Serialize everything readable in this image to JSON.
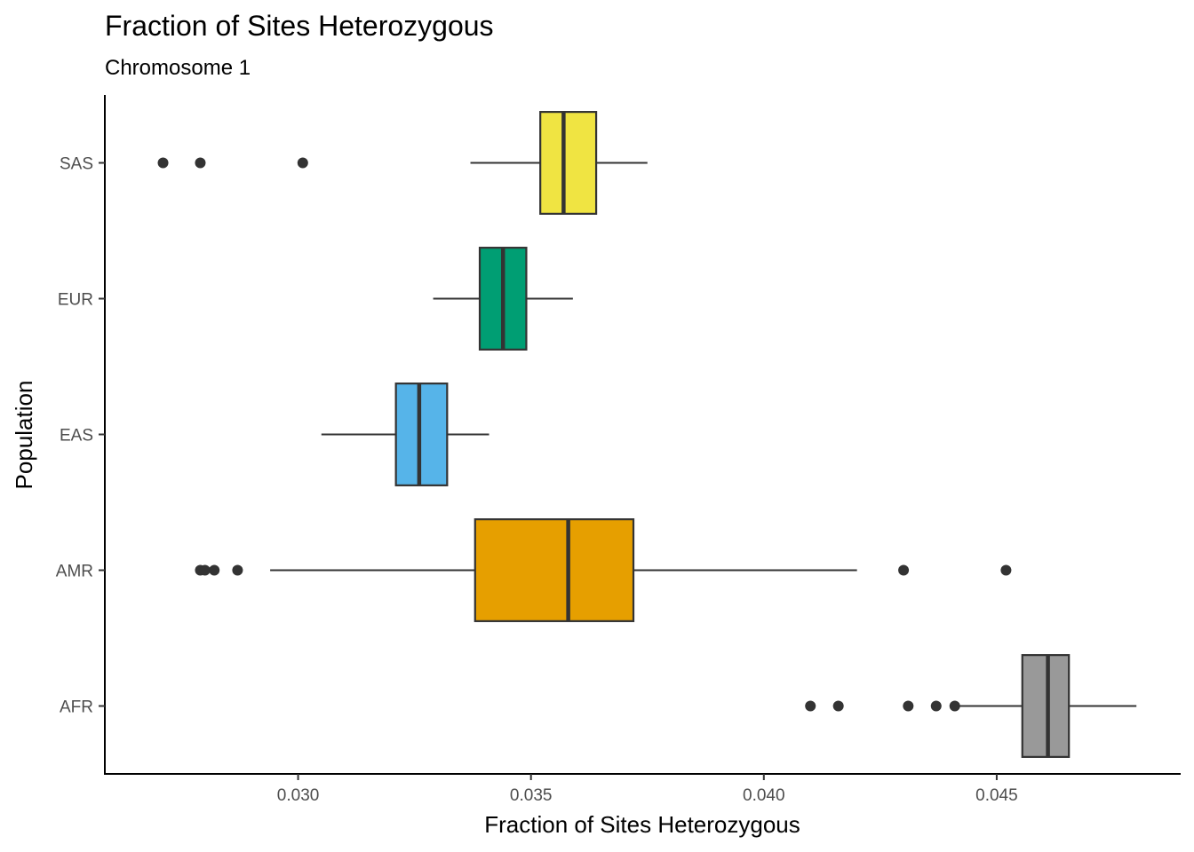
{
  "chart_data": {
    "type": "boxplot",
    "orientation": "horizontal",
    "title": "Fraction of Sites Heterozygous",
    "subtitle": "Chromosome 1",
    "xlabel": "Fraction of Sites Heterozygous",
    "ylabel": "Population",
    "xlim": [
      0.02585,
      0.04895
    ],
    "xticks": [
      0.03,
      0.035,
      0.04,
      0.045
    ],
    "xtick_labels": [
      "0.030",
      "0.035",
      "0.040",
      "0.045"
    ],
    "grid": false,
    "legend": "none",
    "categories": [
      "AFR",
      "AMR",
      "EAS",
      "EUR",
      "SAS"
    ],
    "series": [
      {
        "category": "AFR",
        "color": "#999999",
        "whisker_low": 0.0441,
        "q1": 0.04555,
        "median": 0.0461,
        "q3": 0.04655,
        "whisker_high": 0.048,
        "outliers": [
          0.041,
          0.0416,
          0.0431,
          0.0437,
          0.0441
        ]
      },
      {
        "category": "AMR",
        "color": "#E69F00",
        "whisker_low": 0.0294,
        "q1": 0.0338,
        "median": 0.0358,
        "q3": 0.0372,
        "whisker_high": 0.042,
        "outliers": [
          0.0279,
          0.028,
          0.0282,
          0.0287,
          0.043,
          0.0452
        ]
      },
      {
        "category": "EAS",
        "color": "#56B4E9",
        "whisker_low": 0.0305,
        "q1": 0.0321,
        "median": 0.0326,
        "q3": 0.0332,
        "whisker_high": 0.0341,
        "outliers": []
      },
      {
        "category": "EUR",
        "color": "#009E73",
        "whisker_low": 0.0329,
        "q1": 0.0339,
        "median": 0.0344,
        "q3": 0.0349,
        "whisker_high": 0.0359,
        "outliers": []
      },
      {
        "category": "SAS",
        "color": "#F0E442",
        "whisker_low": 0.0337,
        "q1": 0.0352,
        "median": 0.0357,
        "q3": 0.0364,
        "whisker_high": 0.0375,
        "outliers": [
          0.0271,
          0.0279,
          0.0301
        ]
      }
    ]
  }
}
